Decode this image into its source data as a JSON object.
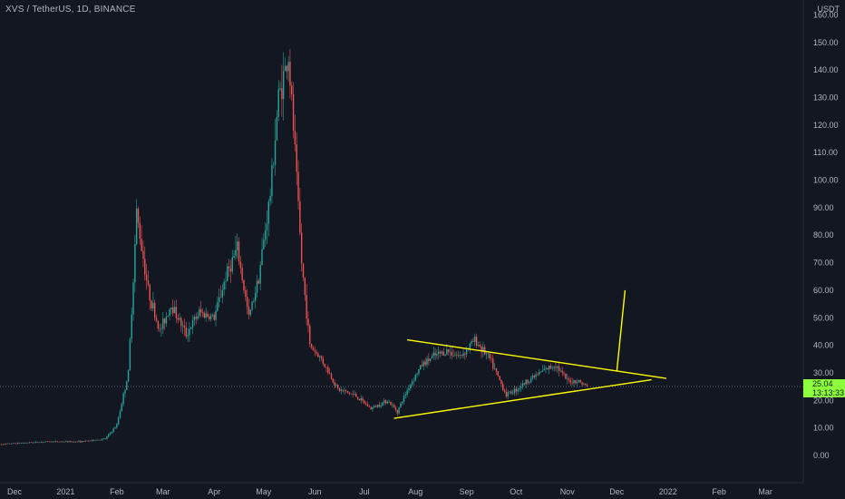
{
  "header": {
    "title": "XVS / TetherUS, 1D, BINANCE",
    "currency": "USDT"
  },
  "last_price": {
    "value": "25.04",
    "countdown": "13:13:33",
    "numeric": 25.04
  },
  "colors": {
    "background": "#131722",
    "up": "#26a69a",
    "down": "#ef5350",
    "trendline": "#ffff00",
    "price_label": "#8cff3a",
    "axis_text": "#b2b5be"
  },
  "chart_data": {
    "type": "line",
    "title": "XVS / TetherUS, 1D, BINANCE",
    "xlabel": "",
    "ylabel": "USDT",
    "ylim": [
      -10,
      163
    ],
    "y_ticks": [
      "0.00",
      "10.00",
      "20.00",
      "30.00",
      "40.00",
      "50.00",
      "60.00",
      "70.00",
      "80.00",
      "90.00",
      "100.00",
      "110.00",
      "120.00",
      "130.00",
      "140.00",
      "150.00",
      "160.00"
    ],
    "x_ticks": [
      "Dec",
      "2021",
      "Feb",
      "Mar",
      "Apr",
      "May",
      "Jun",
      "Jul",
      "Aug",
      "Sep",
      "Oct",
      "Nov",
      "Dec",
      "2022",
      "Feb",
      "Mar"
    ],
    "grid": false,
    "series": [
      {
        "x": [
          "2020-11-20",
          "2020-12-20",
          "2021-01-10",
          "2021-01-25",
          "2021-02-01",
          "2021-02-08",
          "2021-02-13",
          "2021-02-20",
          "2021-02-27",
          "2021-03-06",
          "2021-03-15",
          "2021-03-23",
          "2021-04-01",
          "2021-04-08",
          "2021-04-15",
          "2021-04-22",
          "2021-04-28",
          "2021-05-05",
          "2021-05-10",
          "2021-05-16",
          "2021-05-20",
          "2021-05-24",
          "2021-05-29",
          "2021-06-05",
          "2021-06-15",
          "2021-06-25",
          "2021-07-05",
          "2021-07-15",
          "2021-07-21",
          "2021-07-28",
          "2021-08-05",
          "2021-08-12",
          "2021-08-20",
          "2021-08-28",
          "2021-09-06",
          "2021-09-15",
          "2021-09-25",
          "2021-10-01",
          "2021-10-10",
          "2021-10-18",
          "2021-10-25",
          "2021-11-01",
          "2021-11-08",
          "2021-11-13"
        ],
        "values": [
          4,
          5,
          5,
          6,
          11,
          30,
          88,
          60,
          45,
          55,
          44,
          52,
          50,
          65,
          75,
          50,
          65,
          95,
          130,
          145,
          110,
          70,
          40,
          35,
          24,
          22,
          17,
          20,
          16,
          25,
          33,
          36,
          38,
          36,
          42,
          35,
          22,
          24,
          28,
          31,
          33,
          27,
          27,
          25
        ]
      }
    ],
    "annotations": [
      {
        "kind": "trendline",
        "color": "#ffff00",
        "from": [
          "2021-07-27",
          42
        ],
        "to": [
          "2021-12-31",
          28
        ]
      },
      {
        "kind": "trendline",
        "color": "#ffff00",
        "from": [
          "2021-07-19",
          13.5
        ],
        "to": [
          "2021-12-22",
          27.5
        ]
      },
      {
        "kind": "projection",
        "color": "#ffff00",
        "from": [
          "2021-12-01",
          30.5
        ],
        "to": [
          "2021-12-06",
          60
        ]
      }
    ]
  }
}
